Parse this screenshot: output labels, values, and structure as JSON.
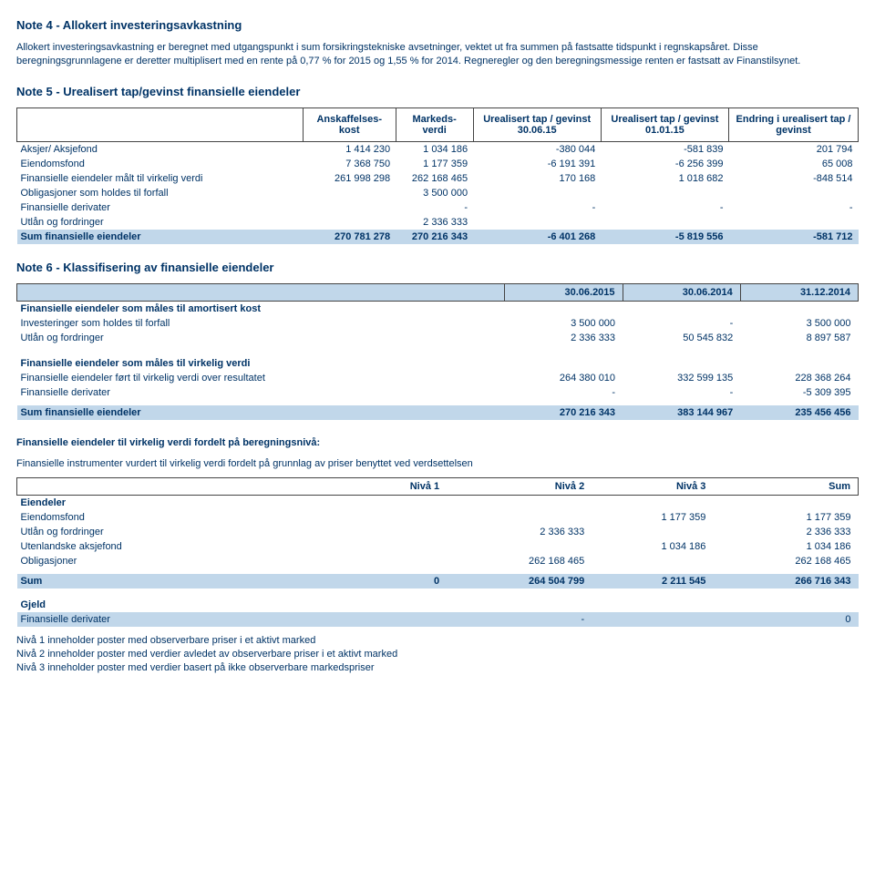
{
  "note4": {
    "title": "Note 4 - Allokert investeringsavkastning",
    "p1": "Allokert investeringsavkastning er beregnet med utgangspunkt i sum forsikringstekniske avsetninger, vektet ut fra summen på fastsatte tidspunkt i regnskapsåret. Disse beregningsgrunnlagene er deretter multiplisert med en rente på 0,77 % for 2015 og 1,55 % for 2014. Regneregler og den beregningsmessige renten er fastsatt av Finanstilsynet."
  },
  "note5": {
    "title": "Note 5 - Urealisert tap/gevinst finansielle eiendeler",
    "headers": [
      "",
      "Anskaffelses-\nkost",
      "Markeds-\nverdi",
      "Urealisert tap / gevinst 30.06.15",
      "Urealisert tap / gevinst 01.01.15",
      "Endring i urealisert tap / gevinst"
    ],
    "rows": [
      {
        "label": "Aksjer/ Aksjefond",
        "v": [
          "1 414 230",
          "1 034 186",
          "-380 044",
          "-581 839",
          "201 794"
        ]
      },
      {
        "label": "Eiendomsfond",
        "v": [
          "7 368 750",
          "1 177 359",
          "-6 191 391",
          "-6 256 399",
          "65 008"
        ]
      },
      {
        "label": "Finansielle eiendeler målt til virkelig verdi",
        "v": [
          "261 998 298",
          "262 168 465",
          "170 168",
          "1 018 682",
          "-848 514"
        ]
      },
      {
        "label": "Obligasjoner som holdes til forfall",
        "v": [
          "",
          "3 500 000",
          "",
          "",
          ""
        ]
      },
      {
        "label": "Finansielle derivater",
        "v": [
          "",
          "-",
          "-",
          "-",
          "-"
        ]
      },
      {
        "label": "Utlån og fordringer",
        "v": [
          "",
          "2 336 333",
          "",
          "",
          ""
        ]
      }
    ],
    "sum": {
      "label": "Sum finansielle eiendeler",
      "v": [
        "270 781 278",
        "270 216 343",
        "-6 401 268",
        "-5 819 556",
        "-581 712"
      ]
    }
  },
  "note6": {
    "title": "Note 6 - Klassifisering av finansielle eiendeler",
    "headers": [
      "30.06.2015",
      "30.06.2014",
      "31.12.2014"
    ],
    "groups": [
      {
        "heading": "Finansielle eiendeler som måles til amortisert kost",
        "rows": [
          {
            "label": "Investeringer som holdes til forfall",
            "v": [
              "3 500 000",
              "-",
              "3 500 000"
            ]
          },
          {
            "label": "Utlån og fordringer",
            "v": [
              "2 336 333",
              "50 545 832",
              "8 897 587"
            ]
          }
        ]
      },
      {
        "heading": "Finansielle eiendeler som måles til virkelig verdi",
        "rows": [
          {
            "label": "Finansielle eiendeler ført til virkelig verdi over resultatet",
            "v": [
              "264 380 010",
              "332 599 135",
              "228 368 264"
            ]
          },
          {
            "label": "Finansielle derivater",
            "v": [
              "-",
              "-",
              "-5 309 395"
            ]
          }
        ]
      }
    ],
    "sum": {
      "label": "Sum finansielle eiendeler",
      "v": [
        "270 216 343",
        "383 144 967",
        "235 456 456"
      ]
    }
  },
  "note7": {
    "heading1": "Finansielle eiendeler til virkelig verdi fordelt på beregningsnivå:",
    "heading2": "Finansielle instrumenter vurdert til virkelig verdi fordelt på grunnlag av priser benyttet ved verdsettelsen",
    "headers": [
      "Nivå 1",
      "Nivå 2",
      "Nivå 3",
      "Sum"
    ],
    "eiendeler_label": "Eiendeler",
    "rows": [
      {
        "label": "Eiendomsfond",
        "v": [
          "",
          "",
          "1 177 359",
          "1 177 359"
        ]
      },
      {
        "label": "Utlån og fordringer",
        "v": [
          "",
          "2 336 333",
          "",
          "2 336 333"
        ]
      },
      {
        "label": "Utenlandske aksjefond",
        "v": [
          "",
          "",
          "1 034 186",
          "1 034 186"
        ]
      },
      {
        "label": "Obligasjoner",
        "v": [
          "",
          "262 168 465",
          "",
          "262 168 465"
        ]
      }
    ],
    "sum": {
      "label": "Sum",
      "v": [
        "0",
        "264 504 799",
        "2 211 545",
        "266 716 343"
      ]
    },
    "gjeld_label": "Gjeld",
    "gjeld_rows": [
      {
        "label": "Finansielle derivater",
        "v": [
          "",
          "-",
          "",
          "0"
        ]
      }
    ],
    "footnotes": [
      "Nivå 1 inneholder poster med observerbare priser i et aktivt marked",
      "Nivå 2 inneholder poster med verdier avledet av observerbare priser i et aktivt marked",
      "Nivå 3 inneholder poster med verdier basert på ikke observerbare markedspriser"
    ]
  }
}
